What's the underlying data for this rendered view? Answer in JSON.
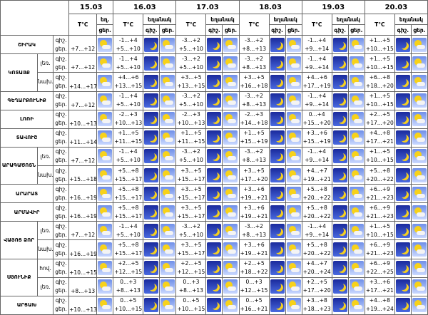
{
  "header": {
    "dates": [
      "15.03",
      "16.03",
      "17.03",
      "18.03",
      "19.03",
      "20.03"
    ],
    "temp_label": "T°C",
    "weather_short": "եղ.",
    "weather_label": "եղանակ",
    "night": "գիշ.",
    "day": "ցեր."
  },
  "rows": [
    {
      "region": "ՇԻՐԱԿ",
      "zones": [
        {
          "today": "+7...+12",
          "days": [
            [
              "-1...+4",
              "+5...+10"
            ],
            [
              "-3...+2",
              "+5...+10"
            ],
            [
              "-3...+2",
              "+8...+13"
            ],
            [
              "-1...+4",
              "+9...+14"
            ],
            [
              "+1...+5",
              "+10...+15"
            ]
          ]
        }
      ]
    },
    {
      "region": "ԿՈՏԱՅՔ",
      "zones": [
        {
          "zone": "լեռ.",
          "today": "+7...+12",
          "days": [
            [
              "-1...+4",
              "+5...+10"
            ],
            [
              "-3...+2",
              "+5...+10"
            ],
            [
              "-3...+2",
              "+8...+13"
            ],
            [
              "-1...+4",
              "+9...+14"
            ],
            [
              "+1...+5",
              "+10...+15"
            ]
          ]
        },
        {
          "zone": "նախ.",
          "today": "+14...+17",
          "days": [
            [
              "+4...+6",
              "+13...+15"
            ],
            [
              "+3...+5",
              "+13...+15"
            ],
            [
              "+3...+5",
              "+16...+18"
            ],
            [
              "+4...+6",
              "+17...+19"
            ],
            [
              "+6...+8",
              "+18...+20"
            ]
          ]
        }
      ]
    },
    {
      "region": "ԳԵՂԱՐՔՈՒՆԻՔ",
      "zones": [
        {
          "today": "+7...+12",
          "days": [
            [
              "-1...+4",
              "+5...+10"
            ],
            [
              "-3...+2",
              "+5...+10"
            ],
            [
              "-3...+2",
              "+8...+13"
            ],
            [
              "-1...+4",
              "+9...+14"
            ],
            [
              "+1...+5",
              "+10...+15"
            ]
          ]
        }
      ]
    },
    {
      "region": "ԼՈՌԻ",
      "zones": [
        {
          "today": "+10...+13",
          "days": [
            [
              "-2...+3",
              "+10...+13"
            ],
            [
              "-2...+3",
              "+10...+13"
            ],
            [
              "-2...+3",
              "+14...+18"
            ],
            [
              "0...+4",
              "+15...+20"
            ],
            [
              "+2...+5",
              "+17...+20"
            ]
          ]
        }
      ]
    },
    {
      "region": "ՏԱՎՈՒՇ",
      "zones": [
        {
          "today": "+11...+14",
          "days": [
            [
              "+1...+5",
              "+11...+15"
            ],
            [
              "+1...+5",
              "+11...+15"
            ],
            [
              "+1...+5",
              "+15...+19"
            ],
            [
              "+3...+6",
              "+15...+19"
            ],
            [
              "+4...+8",
              "+17...+21"
            ]
          ]
        }
      ]
    },
    {
      "region": "ԱՐԱԳԱԾՈՏՆ",
      "zones": [
        {
          "zone": "լեռ.",
          "today": "+7...+12",
          "days": [
            [
              "-1...+4",
              "+5...+10"
            ],
            [
              "-3...+2",
              "+5...+10"
            ],
            [
              "-3...+2",
              "+8...+13"
            ],
            [
              "-1...+4",
              "+9...+14"
            ],
            [
              "+1...+5",
              "+10...+15"
            ]
          ]
        },
        {
          "zone": "նախ.",
          "today": "+15...+18",
          "days": [
            [
              "+5...+8",
              "+15...+17"
            ],
            [
              "+3...+5",
              "+15...+17"
            ],
            [
              "+3...+5",
              "+17...+20"
            ],
            [
              "+4...+7",
              "+19...+21"
            ],
            [
              "+5...+8",
              "+20...+22"
            ]
          ]
        }
      ]
    },
    {
      "region": "ԱՐԱՐԱՏ",
      "zones": [
        {
          "today": "+16...+19",
          "days": [
            [
              "+5...+8",
              "+15...+17"
            ],
            [
              "+3...+5",
              "+15...+17"
            ],
            [
              "+3...+6",
              "+19...+21"
            ],
            [
              "+5...+8",
              "+20...+22"
            ],
            [
              "+6...+9",
              "+21...+23"
            ]
          ]
        }
      ]
    },
    {
      "region": "ԱՐՄԱՎԻՐ",
      "zones": [
        {
          "today": "+16...+19",
          "days": [
            [
              "+5...+8",
              "+15...+17"
            ],
            [
              "+3...+5",
              "+15...+17"
            ],
            [
              "+3...+6",
              "+19...+21"
            ],
            [
              "+5...+8",
              "+20...+22"
            ],
            [
              "+6...+9",
              "+21...+23"
            ]
          ]
        }
      ]
    },
    {
      "region": "ՎԱՅՈՑ ՁՈՐ",
      "zones": [
        {
          "zone": "լեռ.",
          "today": "+7...+12",
          "days": [
            [
              "-1...+4",
              "+5...+10"
            ],
            [
              "-3...+2",
              "+5...+10"
            ],
            [
              "-3...+2",
              "+8...+13"
            ],
            [
              "-1...+4",
              "+9...+14"
            ],
            [
              "+1...+5",
              "+10...+15"
            ]
          ]
        },
        {
          "zone": "նախ.",
          "today": "+16...+19",
          "days": [
            [
              "+5...+8",
              "+15...+17"
            ],
            [
              "+3...+5",
              "+15...+17"
            ],
            [
              "+3...+6",
              "+19...+21"
            ],
            [
              "+5...+8",
              "+20...+22"
            ],
            [
              "+6...+9",
              "+21...+23"
            ]
          ]
        }
      ]
    },
    {
      "region": "ՍՅՈՒՆԻՔ",
      "zones": [
        {
          "zone": "հով.",
          "today": "+10...+15",
          "days": [
            [
              "+2...+5",
              "+12...+15"
            ],
            [
              "+2...+5",
              "+12...+15"
            ],
            [
              "+2...+5",
              "+18...+22"
            ],
            [
              "+4...+7",
              "+20...+24"
            ],
            [
              "+6...+9",
              "+22...+25"
            ]
          ]
        },
        {
          "zone": "լեռ.",
          "today": "+8...+13",
          "days": [
            [
              "0...+3",
              "+8...+13"
            ],
            [
              "0...+3",
              "+8...+13"
            ],
            [
              "0...+3",
              "+12...+15"
            ],
            [
              "+2...+5",
              "+17...+20"
            ],
            [
              "+3...+6",
              "+17...+21"
            ]
          ]
        }
      ]
    },
    {
      "region": "ԱՐՑԱԽ",
      "zones": [
        {
          "today": "+10...+13",
          "days": [
            [
              "0...+5",
              "+10...+15"
            ],
            [
              "0...+5",
              "+10...+15"
            ],
            [
              "0...+5",
              "+16...+21"
            ],
            [
              "+3...+8",
              "+18...+23"
            ],
            [
              "+4...+8",
              "+19...+24"
            ]
          ]
        }
      ]
    }
  ]
}
